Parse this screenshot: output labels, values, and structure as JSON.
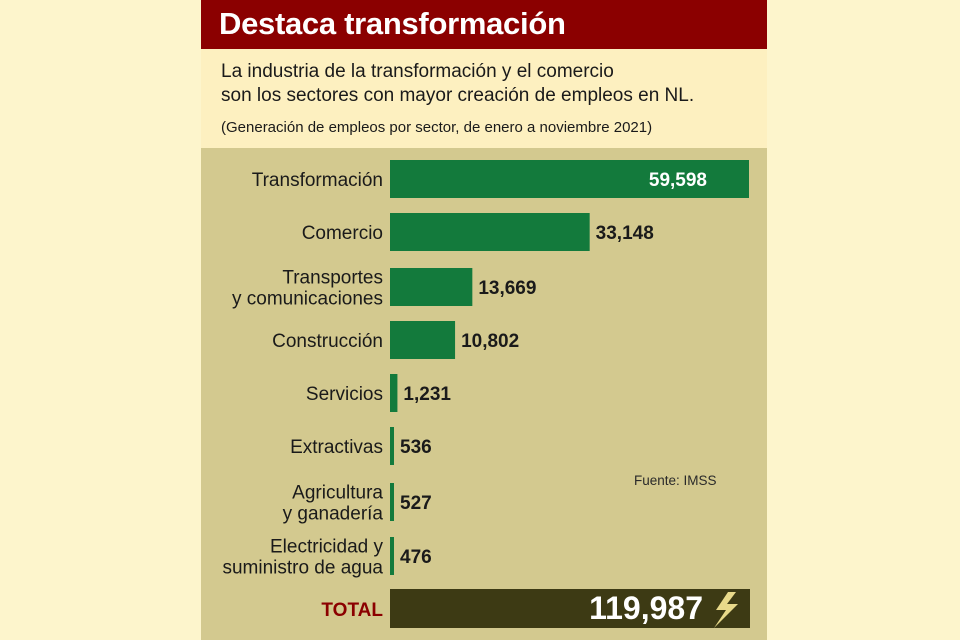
{
  "header": {
    "title": "Destaca transformación",
    "subtitle_line1": "La industria de la transformación y el comercio",
    "subtitle_line2": "son los sectores con mayor creación de empleos en NL.",
    "note": "(Generación de empleos por sector, de enero a noviembre 2021)"
  },
  "source": "Fuente: IMSS",
  "colors": {
    "title_bar": "#8b0000",
    "bar": "#137a3c",
    "total_bar": "#3d3a14",
    "total_label": "#8b0000",
    "plot_bg": "#d3c98f",
    "page_bg": "#fdf5cc",
    "card_bg": "#fdf0c0"
  },
  "chart_data": {
    "type": "bar",
    "orientation": "horizontal",
    "categories": [
      [
        "Transformación"
      ],
      [
        "Comercio"
      ],
      [
        "Transportes",
        "y comunicaciones"
      ],
      [
        "Construcción"
      ],
      [
        "Servicios"
      ],
      [
        "Extractivas"
      ],
      [
        "Agricultura",
        "y ganadería"
      ],
      [
        "Electricidad y",
        "suministro de agua"
      ]
    ],
    "values": [
      59598,
      33148,
      13669,
      10802,
      1231,
      536,
      527,
      476
    ],
    "value_labels": [
      "59,598",
      "33,148",
      "13,669",
      "10,802",
      "1,231",
      "536",
      "527",
      "476"
    ],
    "total": {
      "label": "TOTAL",
      "value": 119987,
      "value_label": "119,987"
    },
    "xlim": [
      0,
      59598
    ],
    "grid": false,
    "legend": "none"
  }
}
